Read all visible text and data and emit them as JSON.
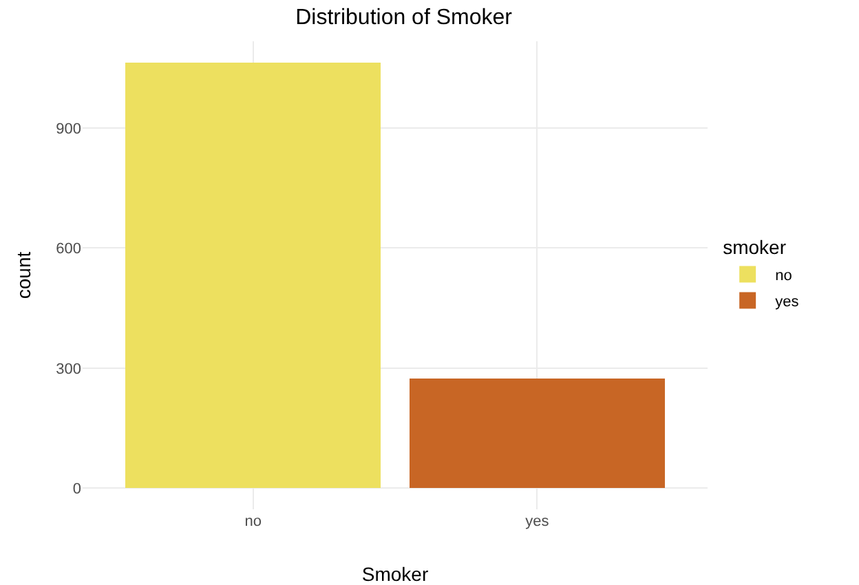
{
  "chart_data": {
    "type": "bar",
    "title": "Distribution of Smoker",
    "xlabel": "Smoker",
    "ylabel": "count",
    "legend_title": "smoker",
    "categories": [
      "no",
      "yes"
    ],
    "series": [
      {
        "name": "no",
        "color": "#ede05f",
        "values": [
          1064,
          null
        ]
      },
      {
        "name": "yes",
        "color": "#c86625",
        "values": [
          null,
          274
        ]
      }
    ],
    "stacked": true,
    "ylim": [
      -53,
      1117
    ],
    "yticks": [
      0,
      300,
      600,
      900
    ],
    "grid": true,
    "legend": "right"
  }
}
